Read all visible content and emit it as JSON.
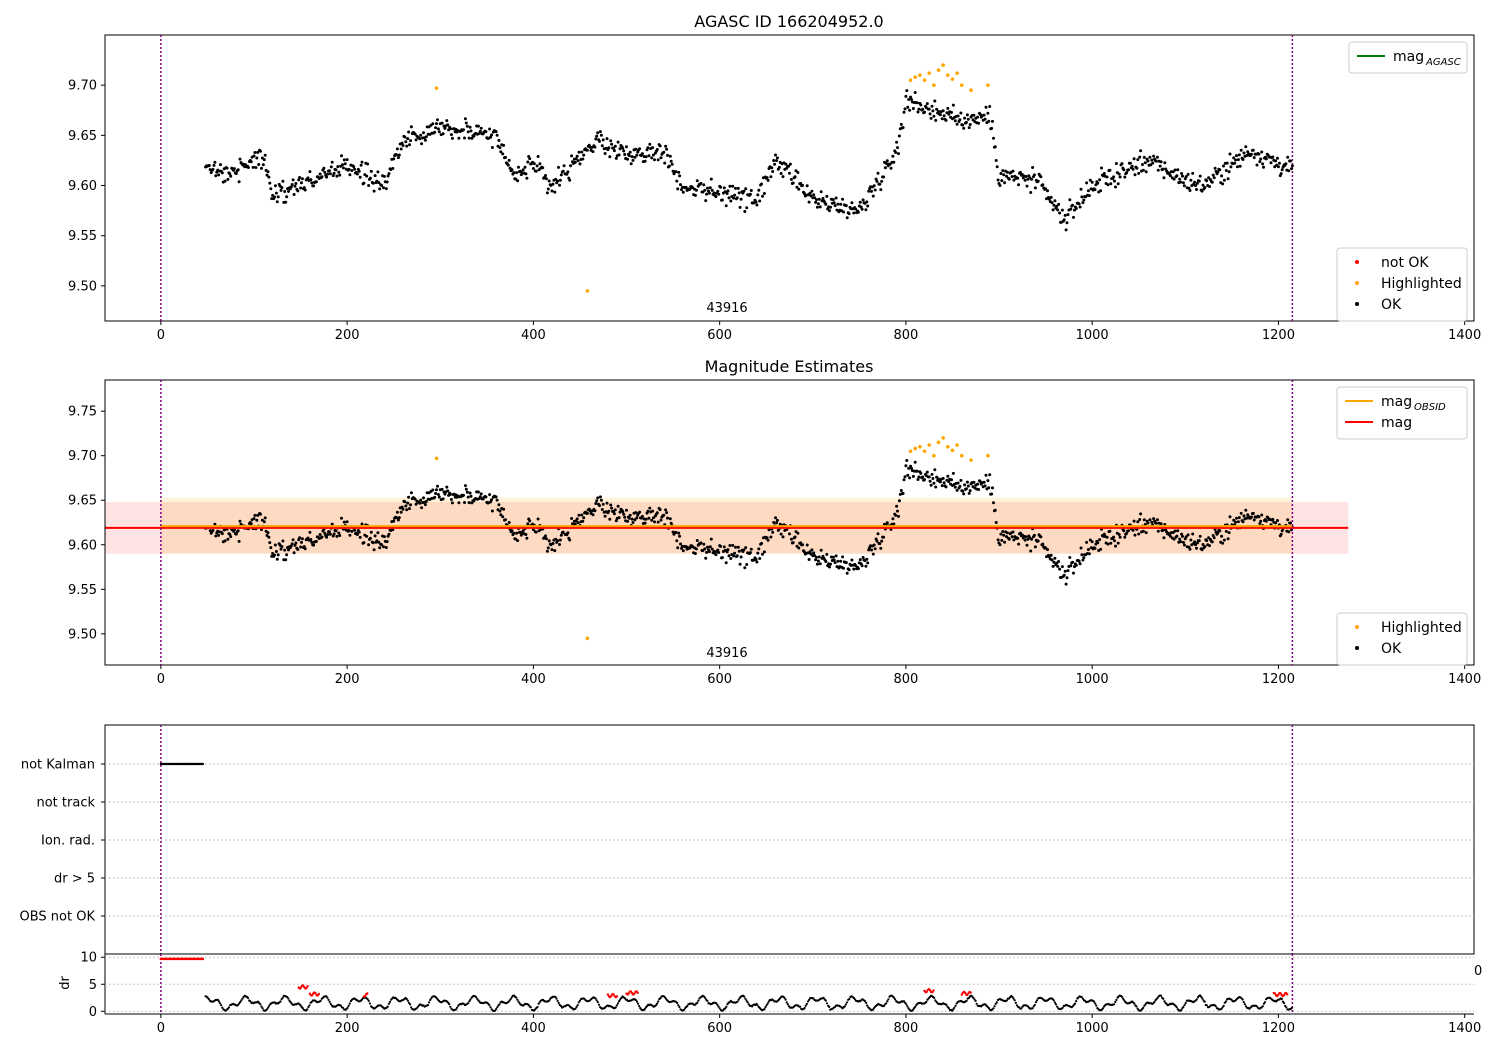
{
  "figure": {
    "panels": [
      {
        "title": "AGASC ID 166204952.0",
        "obsid_label": "43916"
      },
      {
        "title": "Magnitude Estimates",
        "obsid_label": "43916"
      },
      {
        "title": ""
      }
    ],
    "stray_label": "0"
  },
  "chart_data": [
    {
      "type": "scatter",
      "title": "AGASC ID 166204952.0",
      "xlabel": "",
      "ylabel": "",
      "xlim": [
        -60,
        1410
      ],
      "ylim": [
        9.465,
        9.75
      ],
      "xticks": [
        "0",
        "200",
        "400",
        "600",
        "800",
        "1000",
        "1200",
        "1400"
      ],
      "yticks": [
        "9.50",
        "9.55",
        "9.60",
        "9.65",
        "9.70"
      ],
      "grid": false,
      "legends": [
        {
          "placement": "top-right",
          "entries": [
            {
              "label": "mag",
              "subscript": "AGASC",
              "color": "#008000",
              "kind": "line"
            }
          ]
        },
        {
          "placement": "bottom-right",
          "entries": [
            {
              "label": "not OK",
              "color": "#ff0000",
              "kind": "point"
            },
            {
              "label": "Highlighted",
              "color": "#ffa500",
              "kind": "point"
            },
            {
              "label": "OK",
              "color": "#000000",
              "kind": "point"
            }
          ]
        }
      ],
      "vlines": [
        0,
        1215
      ],
      "series": [
        {
          "name": "OK",
          "color": "#000000",
          "x_range": [
            48,
            1215
          ],
          "profile": [
            [
              48,
              9.615
            ],
            [
              80,
              9.615
            ],
            [
              110,
              9.63
            ],
            [
              120,
              9.59
            ],
            [
              160,
              9.605
            ],
            [
              200,
              9.62
            ],
            [
              240,
              9.6
            ],
            [
              260,
              9.645
            ],
            [
              300,
              9.66
            ],
            [
              360,
              9.65
            ],
            [
              380,
              9.61
            ],
            [
              400,
              9.62
            ],
            [
              420,
              9.6
            ],
            [
              470,
              9.645
            ],
            [
              500,
              9.63
            ],
            [
              540,
              9.635
            ],
            [
              560,
              9.6
            ],
            [
              640,
              9.585
            ],
            [
              660,
              9.625
            ],
            [
              700,
              9.585
            ],
            [
              750,
              9.575
            ],
            [
              790,
              9.635
            ],
            [
              800,
              9.685
            ],
            [
              860,
              9.665
            ],
            [
              890,
              9.67
            ],
            [
              900,
              9.61
            ],
            [
              940,
              9.605
            ],
            [
              970,
              9.565
            ],
            [
              1000,
              9.6
            ],
            [
              1060,
              9.625
            ],
            [
              1100,
              9.605
            ],
            [
              1120,
              9.6
            ],
            [
              1170,
              9.635
            ],
            [
              1215,
              9.615
            ]
          ],
          "noise": 0.013
        },
        {
          "name": "Highlighted",
          "color": "#ffa500",
          "points": [
            [
              296,
              9.697
            ],
            [
              458,
              9.495
            ],
            [
              805,
              9.705
            ],
            [
              810,
              9.708
            ],
            [
              815,
              9.71
            ],
            [
              820,
              9.705
            ],
            [
              825,
              9.712
            ],
            [
              830,
              9.7
            ],
            [
              835,
              9.715
            ],
            [
              840,
              9.72
            ],
            [
              845,
              9.71
            ],
            [
              850,
              9.706
            ],
            [
              855,
              9.712
            ],
            [
              860,
              9.7
            ],
            [
              870,
              9.695
            ],
            [
              888,
              9.7
            ]
          ]
        }
      ],
      "annotation": "43916"
    },
    {
      "type": "scatter",
      "title": "Magnitude Estimates",
      "xlabel": "",
      "ylabel": "",
      "xlim": [
        -60,
        1410
      ],
      "ylim": [
        9.465,
        9.785
      ],
      "xticks": [
        "0",
        "200",
        "400",
        "600",
        "800",
        "1000",
        "1200",
        "1400"
      ],
      "yticks": [
        "9.50",
        "9.55",
        "9.60",
        "9.65",
        "9.70",
        "9.75"
      ],
      "grid": false,
      "legends": [
        {
          "placement": "top-right",
          "entries": [
            {
              "label": "mag",
              "subscript": "OBSID",
              "color": "#ffa500",
              "kind": "line"
            },
            {
              "label": "mag",
              "color": "#ff0000",
              "kind": "line"
            }
          ]
        },
        {
          "placement": "bottom-right",
          "entries": [
            {
              "label": "Highlighted",
              "color": "#ffa500",
              "kind": "point"
            },
            {
              "label": "OK",
              "color": "#000000",
              "kind": "point"
            }
          ]
        }
      ],
      "bands": [
        {
          "x": [
            -60,
            1275
          ],
          "y": [
            9.59,
            9.648
          ],
          "color": "#ff0000",
          "opacity": 0.11
        },
        {
          "x": [
            0,
            1215
          ],
          "y": [
            9.59,
            9.653
          ],
          "color": "#ffa500",
          "opacity": 0.14
        }
      ],
      "hlines": [
        {
          "y": 9.619,
          "x": [
            -60,
            1275
          ],
          "color": "#ff0000"
        },
        {
          "y": 9.621,
          "x": [
            0,
            1215
          ],
          "color": "#ffa500"
        }
      ],
      "vlines": [
        0,
        1215
      ],
      "annotation": "43916"
    },
    {
      "type": "scatter",
      "title": "",
      "xlim": [
        -60,
        1410
      ],
      "xticks": [
        "0",
        "200",
        "400",
        "600",
        "800",
        "1000",
        "1200",
        "1400"
      ],
      "flag_rows": [
        "not Kalman",
        "not track",
        "Ion. rad.",
        "dr > 5",
        "OBS not OK"
      ],
      "flags": [
        {
          "row": "not Kalman",
          "x_range": [
            0,
            45
          ],
          "color": "#000000"
        }
      ],
      "dr": {
        "ylabel": "dr",
        "ylim": [
          -0.5,
          10.6
        ],
        "yticks": [
          "0",
          "5",
          "10"
        ],
        "ok_range": [
          48,
          1215
        ],
        "bad_early": {
          "x_range": [
            0,
            45
          ],
          "y": 9.7
        },
        "bad_segments": [
          [
            148,
            158,
            4.5
          ],
          [
            160,
            170,
            3.2
          ],
          [
            218,
            222,
            3.0
          ],
          [
            480,
            490,
            2.9
          ],
          [
            500,
            512,
            3.4
          ],
          [
            820,
            830,
            3.8
          ],
          [
            860,
            870,
            3.3
          ],
          [
            1195,
            1210,
            3.1
          ]
        ]
      },
      "vlines": [
        0,
        1215
      ]
    }
  ],
  "colors": {
    "ok": "#000000",
    "highlighted": "#ffa500",
    "not_ok": "#ff0000",
    "agasc": "#008000",
    "vline": "#800080"
  }
}
